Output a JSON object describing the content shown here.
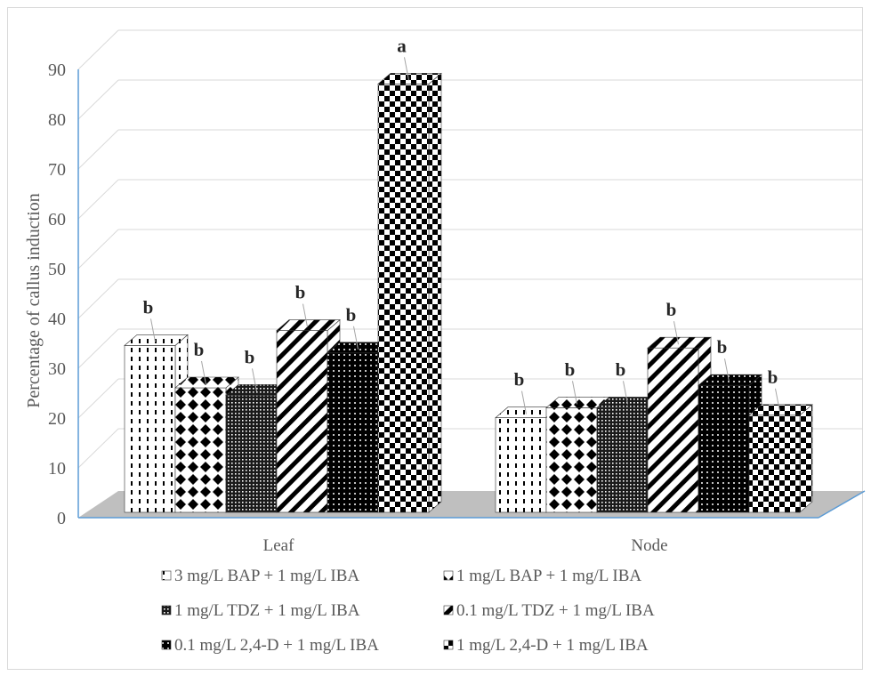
{
  "chart_data": {
    "type": "bar",
    "style": "3d-clustered-column",
    "categories": [
      "Leaf",
      "Node"
    ],
    "ylabel": "Percentage of callus induction",
    "xlabel": "",
    "ylim": [
      0,
      90
    ],
    "yticks": [
      "0",
      "10",
      "20",
      "30",
      "40",
      "50",
      "60",
      "70",
      "80",
      "90"
    ],
    "grid": true,
    "legend_position": "bottom",
    "series": [
      {
        "name": "3 mg/L BAP + 1 mg/L IBA",
        "values": [
          33.5,
          19.0
        ],
        "labels": [
          "b",
          "b"
        ],
        "pattern": "dashes"
      },
      {
        "name": "1 mg/L BAP + 1 mg/L IBA",
        "values": [
          25.0,
          21.0
        ],
        "labels": [
          "b",
          "b"
        ],
        "pattern": "diamonds"
      },
      {
        "name": "1 mg/L TDZ + 1 mg/L IBA",
        "values": [
          23.5,
          21.0
        ],
        "labels": [
          "b",
          "b"
        ],
        "pattern": "fine-dots"
      },
      {
        "name": "0.1 mg/L TDZ + 1 mg/L IBA",
        "values": [
          36.5,
          33.0
        ],
        "labels": [
          "b",
          "b"
        ],
        "pattern": "diagonal-stripes"
      },
      {
        "name": "0.1 mg/L 2,4-D + 1 mg/L IBA",
        "values": [
          32.0,
          25.5
        ],
        "labels": [
          "b",
          "b"
        ],
        "pattern": "black-dots"
      },
      {
        "name": "1 mg/L 2,4-D + 1 mg/L IBA",
        "values": [
          86.0,
          19.5
        ],
        "labels": [
          "a",
          "b"
        ],
        "pattern": "checker"
      }
    ]
  }
}
